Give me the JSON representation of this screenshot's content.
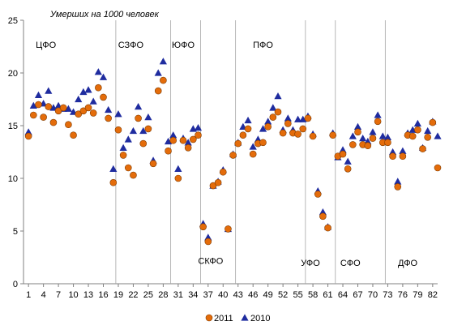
{
  "chart_data": {
    "type": "scatter",
    "title": "",
    "ylabel": "Умерших на 1000 человек",
    "xlabel": "",
    "ylim": [
      0,
      25
    ],
    "xlim": [
      0,
      83
    ],
    "y_ticks": [
      0,
      5,
      10,
      15,
      20,
      25
    ],
    "x_ticks": [
      1,
      4,
      7,
      10,
      13,
      16,
      19,
      22,
      25,
      28,
      31,
      34,
      37,
      40,
      43,
      46,
      49,
      52,
      55,
      58,
      61,
      64,
      67,
      70,
      73,
      76,
      79,
      82
    ],
    "grid": false,
    "legend_position": "bottom",
    "region_separators": [
      18.5,
      29.5,
      35.5,
      42.5,
      56.5,
      62.5,
      72.5
    ],
    "regions": [
      {
        "label": "ЦФО",
        "x": 4.5,
        "y": 22.7
      },
      {
        "label": "СЗФО",
        "x": 21.5,
        "y": 22.7
      },
      {
        "label": "ЮФО",
        "x": 32,
        "y": 22.7
      },
      {
        "label": "СКФО",
        "x": 37.5,
        "y": 2.2
      },
      {
        "label": "ПФО",
        "x": 48,
        "y": 22.7
      },
      {
        "label": "УФО",
        "x": 57.5,
        "y": 2.0
      },
      {
        "label": "СФО",
        "x": 65.5,
        "y": 2.0
      },
      {
        "label": "ДФО",
        "x": 77,
        "y": 2.0
      }
    ],
    "series": [
      {
        "name": "2011",
        "marker": "circle",
        "color": "#E46C0A",
        "x": [
          1,
          2,
          3,
          4,
          5,
          6,
          7,
          8,
          9,
          10,
          11,
          12,
          13,
          14,
          15,
          16,
          17,
          18,
          19,
          20,
          21,
          22,
          23,
          24,
          25,
          26,
          27,
          28,
          29,
          30,
          31,
          32,
          33,
          34,
          35,
          36,
          37,
          38,
          39,
          40,
          41,
          42,
          43,
          44,
          45,
          46,
          47,
          48,
          49,
          50,
          51,
          52,
          53,
          54,
          55,
          56,
          57,
          58,
          59,
          60,
          61,
          62,
          63,
          64,
          65,
          66,
          67,
          68,
          69,
          70,
          71,
          72,
          73,
          74,
          75,
          76,
          77,
          78,
          79,
          80,
          81,
          82,
          83
        ],
        "y": [
          14.0,
          16.0,
          17.0,
          15.8,
          16.8,
          15.3,
          16.4,
          16.7,
          15.1,
          14.1,
          16.1,
          16.4,
          16.7,
          16.2,
          18.6,
          17.7,
          15.7,
          9.6,
          14.6,
          12.2,
          11.0,
          10.3,
          15.7,
          13.3,
          14.7,
          11.4,
          18.3,
          19.3,
          12.6,
          13.6,
          10.0,
          13.6,
          12.9,
          13.7,
          14.1,
          5.4,
          4.0,
          9.3,
          9.6,
          10.6,
          5.2,
          12.2,
          13.3,
          14.1,
          14.7,
          12.3,
          13.3,
          13.4,
          14.9,
          15.8,
          16.3,
          14.3,
          15.2,
          14.3,
          14.2,
          14.7,
          15.7,
          14.0,
          8.5,
          6.4,
          5.3,
          14.1,
          12.1,
          12.3,
          10.9,
          13.2,
          14.4,
          13.2,
          13.1,
          13.8,
          15.4,
          13.4,
          13.4,
          12.1,
          9.2,
          12.1,
          14.1,
          14.0,
          14.6,
          12.8,
          13.9,
          15.3,
          11.0
        ]
      },
      {
        "name": "2010",
        "marker": "triangle",
        "color": "#1F2C9F",
        "x": [
          1,
          2,
          3,
          4,
          5,
          6,
          7,
          8,
          9,
          10,
          11,
          12,
          13,
          14,
          15,
          16,
          17,
          18,
          19,
          20,
          21,
          22,
          23,
          24,
          25,
          26,
          27,
          28,
          29,
          30,
          31,
          32,
          33,
          34,
          35,
          36,
          37,
          38,
          39,
          40,
          41,
          42,
          43,
          44,
          45,
          46,
          47,
          48,
          49,
          50,
          51,
          52,
          53,
          54,
          55,
          56,
          57,
          58,
          59,
          60,
          61,
          62,
          63,
          64,
          65,
          66,
          67,
          68,
          69,
          70,
          71,
          72,
          73,
          74,
          75,
          76,
          77,
          78,
          79,
          80,
          81,
          82,
          83
        ],
        "y": [
          14.4,
          16.9,
          17.9,
          17.1,
          18.3,
          16.7,
          16.9,
          16.6,
          16.6,
          16.3,
          17.5,
          18.2,
          18.4,
          17.3,
          20.1,
          19.6,
          16.5,
          10.9,
          16.1,
          12.9,
          13.7,
          14.5,
          16.8,
          14.5,
          15.8,
          11.7,
          20.0,
          21.1,
          13.5,
          14.1,
          10.9,
          13.8,
          13.4,
          14.7,
          14.8,
          5.7,
          4.4,
          9.3,
          9.7,
          10.8,
          5.2,
          12.3,
          13.4,
          14.9,
          15.5,
          13.0,
          13.7,
          14.7,
          15.4,
          16.7,
          17.8,
          14.6,
          15.7,
          14.6,
          15.6,
          15.6,
          15.9,
          14.2,
          8.8,
          6.8,
          5.4,
          14.3,
          12.0,
          12.7,
          11.6,
          14.0,
          14.9,
          13.8,
          13.5,
          14.4,
          16.0,
          14.0,
          13.9,
          12.5,
          9.7,
          12.6,
          14.3,
          14.6,
          15.2,
          12.9,
          14.5,
          15.4,
          14.0
        ]
      }
    ]
  }
}
